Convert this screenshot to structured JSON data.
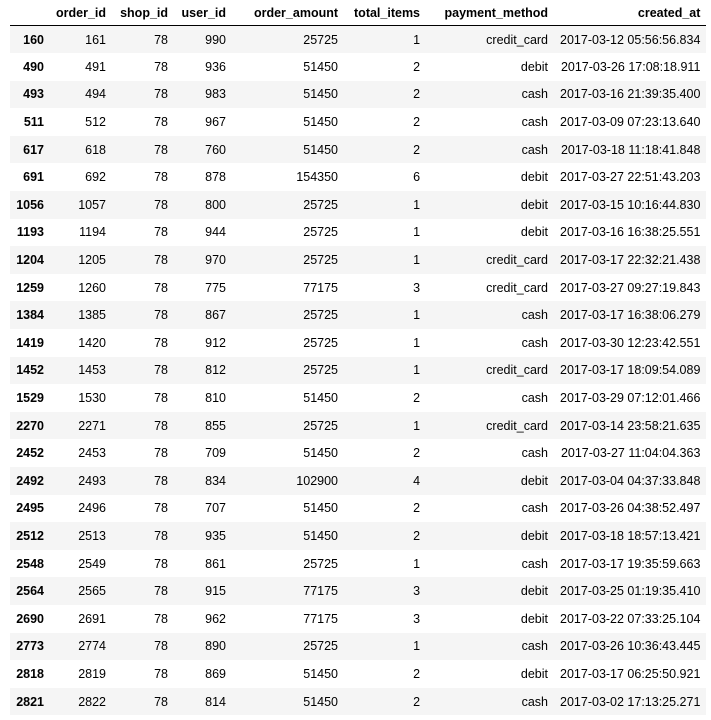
{
  "table": {
    "index_header": "",
    "columns": [
      "order_id",
      "shop_id",
      "user_id",
      "order_amount",
      "total_items",
      "payment_method",
      "created_at"
    ],
    "rows": [
      {
        "index": "160",
        "cells": [
          "161",
          "78",
          "990",
          "25725",
          "1",
          "credit_card",
          "2017-03-12 05:56:56.834"
        ]
      },
      {
        "index": "490",
        "cells": [
          "491",
          "78",
          "936",
          "51450",
          "2",
          "debit",
          "2017-03-26 17:08:18.911"
        ]
      },
      {
        "index": "493",
        "cells": [
          "494",
          "78",
          "983",
          "51450",
          "2",
          "cash",
          "2017-03-16 21:39:35.400"
        ]
      },
      {
        "index": "511",
        "cells": [
          "512",
          "78",
          "967",
          "51450",
          "2",
          "cash",
          "2017-03-09 07:23:13.640"
        ]
      },
      {
        "index": "617",
        "cells": [
          "618",
          "78",
          "760",
          "51450",
          "2",
          "cash",
          "2017-03-18 11:18:41.848"
        ]
      },
      {
        "index": "691",
        "cells": [
          "692",
          "78",
          "878",
          "154350",
          "6",
          "debit",
          "2017-03-27 22:51:43.203"
        ]
      },
      {
        "index": "1056",
        "cells": [
          "1057",
          "78",
          "800",
          "25725",
          "1",
          "debit",
          "2017-03-15 10:16:44.830"
        ]
      },
      {
        "index": "1193",
        "cells": [
          "1194",
          "78",
          "944",
          "25725",
          "1",
          "debit",
          "2017-03-16 16:38:25.551"
        ]
      },
      {
        "index": "1204",
        "cells": [
          "1205",
          "78",
          "970",
          "25725",
          "1",
          "credit_card",
          "2017-03-17 22:32:21.438"
        ]
      },
      {
        "index": "1259",
        "cells": [
          "1260",
          "78",
          "775",
          "77175",
          "3",
          "credit_card",
          "2017-03-27 09:27:19.843"
        ]
      },
      {
        "index": "1384",
        "cells": [
          "1385",
          "78",
          "867",
          "25725",
          "1",
          "cash",
          "2017-03-17 16:38:06.279"
        ]
      },
      {
        "index": "1419",
        "cells": [
          "1420",
          "78",
          "912",
          "25725",
          "1",
          "cash",
          "2017-03-30 12:23:42.551"
        ]
      },
      {
        "index": "1452",
        "cells": [
          "1453",
          "78",
          "812",
          "25725",
          "1",
          "credit_card",
          "2017-03-17 18:09:54.089"
        ]
      },
      {
        "index": "1529",
        "cells": [
          "1530",
          "78",
          "810",
          "51450",
          "2",
          "cash",
          "2017-03-29 07:12:01.466"
        ]
      },
      {
        "index": "2270",
        "cells": [
          "2271",
          "78",
          "855",
          "25725",
          "1",
          "credit_card",
          "2017-03-14 23:58:21.635"
        ]
      },
      {
        "index": "2452",
        "cells": [
          "2453",
          "78",
          "709",
          "51450",
          "2",
          "cash",
          "2017-03-27 11:04:04.363"
        ]
      },
      {
        "index": "2492",
        "cells": [
          "2493",
          "78",
          "834",
          "102900",
          "4",
          "debit",
          "2017-03-04 04:37:33.848"
        ]
      },
      {
        "index": "2495",
        "cells": [
          "2496",
          "78",
          "707",
          "51450",
          "2",
          "cash",
          "2017-03-26 04:38:52.497"
        ]
      },
      {
        "index": "2512",
        "cells": [
          "2513",
          "78",
          "935",
          "51450",
          "2",
          "debit",
          "2017-03-18 18:57:13.421"
        ]
      },
      {
        "index": "2548",
        "cells": [
          "2549",
          "78",
          "861",
          "25725",
          "1",
          "cash",
          "2017-03-17 19:35:59.663"
        ]
      },
      {
        "index": "2564",
        "cells": [
          "2565",
          "78",
          "915",
          "77175",
          "3",
          "debit",
          "2017-03-25 01:19:35.410"
        ]
      },
      {
        "index": "2690",
        "cells": [
          "2691",
          "78",
          "962",
          "77175",
          "3",
          "debit",
          "2017-03-22 07:33:25.104"
        ]
      },
      {
        "index": "2773",
        "cells": [
          "2774",
          "78",
          "890",
          "25725",
          "1",
          "cash",
          "2017-03-26 10:36:43.445"
        ]
      },
      {
        "index": "2818",
        "cells": [
          "2819",
          "78",
          "869",
          "51450",
          "2",
          "debit",
          "2017-03-17 06:25:50.921"
        ]
      },
      {
        "index": "2821",
        "cells": [
          "2822",
          "78",
          "814",
          "51450",
          "2",
          "cash",
          "2017-03-02 17:13:25.271"
        ]
      }
    ]
  }
}
